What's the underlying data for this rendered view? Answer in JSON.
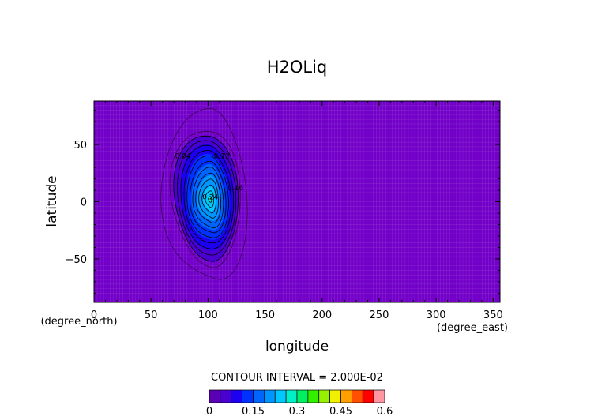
{
  "chart_data": {
    "type": "contour",
    "title": "H2OLiq",
    "xlabel": "longitude",
    "ylabel": "latitude",
    "x_unit": "(degree_east)",
    "y_unit": "(degree_north)",
    "xlim": [
      0,
      356
    ],
    "ylim": [
      -88,
      88
    ],
    "x_ticks": [
      0,
      50,
      100,
      150,
      200,
      250,
      300,
      350
    ],
    "y_ticks": [
      -50,
      0,
      50
    ],
    "contour_interval_text": "CONTOUR INTERVAL = 2.000E-02",
    "contour_interval": 0.02,
    "colorbar": {
      "min": 0,
      "max": 0.6,
      "tick_values": [
        0,
        0.15,
        0.3,
        0.45,
        0.6
      ],
      "tick_labels": [
        "0",
        "0.15",
        "0.3",
        "0.45",
        "0.6"
      ],
      "colors": [
        "#5a00b4",
        "#4b00d2",
        "#1e00f0",
        "#0032ff",
        "#0064ff",
        "#0096ff",
        "#00c8ff",
        "#00f0c8",
        "#00f064",
        "#32f000",
        "#96f000",
        "#f0f000",
        "#ffa000",
        "#ff5000",
        "#ff0000",
        "#ff96a0"
      ]
    },
    "background_color": "#7200c8",
    "field": {
      "center_lon": 102,
      "center_lat": 2,
      "peak_value": 0.27,
      "lon_extent": [
        55,
        135
      ],
      "lat_extent": [
        -65,
        68
      ]
    },
    "contour_labels": [
      {
        "text": "0.04",
        "lon": 78,
        "lat": 38
      },
      {
        "text": "0.12",
        "lon": 112,
        "lat": 38
      },
      {
        "text": "0.16",
        "lon": 124,
        "lat": 10
      },
      {
        "text": "0.24",
        "lon": 102,
        "lat": 2
      }
    ]
  }
}
